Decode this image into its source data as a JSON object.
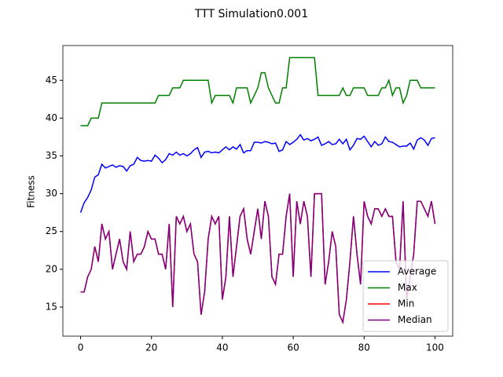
{
  "chart_data": {
    "type": "line",
    "title": "TTT Simulation0.001",
    "y_label": "Fitness",
    "x": [
      0,
      1,
      2,
      3,
      4,
      5,
      6,
      7,
      8,
      9,
      10,
      11,
      12,
      13,
      14,
      15,
      16,
      17,
      18,
      19,
      20,
      21,
      22,
      23,
      24,
      25,
      26,
      27,
      28,
      29,
      30,
      31,
      32,
      33,
      34,
      35,
      36,
      37,
      38,
      39,
      40,
      41,
      42,
      43,
      44,
      45,
      46,
      47,
      48,
      49,
      50,
      51,
      52,
      53,
      54,
      55,
      56,
      57,
      58,
      59,
      60,
      61,
      62,
      63,
      64,
      65,
      66,
      67,
      68,
      69,
      70,
      71,
      72,
      73,
      74,
      75,
      76,
      77,
      78,
      79,
      80,
      81,
      82,
      83,
      84,
      85,
      86,
      87,
      88,
      89,
      90,
      91,
      92,
      93,
      94,
      95,
      96,
      97,
      98,
      99,
      100
    ],
    "series": [
      {
        "name": "Average",
        "color": "#0000ff",
        "values": [
          27.5,
          28.8,
          29.5,
          30.5,
          32.2,
          32.5,
          33.9,
          33.4,
          33.6,
          33.8,
          33.5,
          33.7,
          33.6,
          33.0,
          33.7,
          33.9,
          34.8,
          34.4,
          34.3,
          34.4,
          34.3,
          35.1,
          34.7,
          34.1,
          34.5,
          35.3,
          35.1,
          35.5,
          35.1,
          35.3,
          35.0,
          35.3,
          35.8,
          36.1,
          34.8,
          35.5,
          35.6,
          35.4,
          35.5,
          35.4,
          35.8,
          36.2,
          35.8,
          36.2,
          35.9,
          36.5,
          35.4,
          35.7,
          35.7,
          36.8,
          36.8,
          36.7,
          36.9,
          36.8,
          36.6,
          36.7,
          35.6,
          35.8,
          36.9,
          36.5,
          36.8,
          37.2,
          37.8,
          37.1,
          37.3,
          37.0,
          37.2,
          37.5,
          36.4,
          36.6,
          36.9,
          36.5,
          36.6,
          37.2,
          36.6,
          37.2,
          35.8,
          36.4,
          37.3,
          37.2,
          37.6,
          36.9,
          36.2,
          36.9,
          36.4,
          36.6,
          37.5,
          36.9,
          36.8,
          36.5,
          36.2,
          36.3,
          36.3,
          36.7,
          35.9,
          37.1,
          37.4,
          37.1,
          36.4,
          37.3,
          37.4
        ]
      },
      {
        "name": "Max",
        "color": "#008000",
        "values": [
          39,
          39,
          39,
          40,
          40,
          40,
          42,
          42,
          42,
          42,
          42,
          42,
          42,
          42,
          42,
          42,
          42,
          42,
          42,
          42,
          42,
          42,
          43,
          43,
          43,
          43,
          44,
          44,
          44,
          45,
          45,
          45,
          45,
          45,
          45,
          45,
          45,
          42,
          43,
          43,
          43,
          43,
          43,
          42,
          44,
          44,
          44,
          44,
          42,
          43,
          44,
          46,
          46,
          44,
          43,
          42,
          42,
          44,
          44,
          48,
          48,
          48,
          48,
          48,
          48,
          48,
          48,
          43,
          43,
          43,
          43,
          43,
          43,
          43,
          44,
          43,
          43,
          44,
          44,
          44,
          44,
          43,
          43,
          43,
          43,
          44,
          44,
          45,
          43,
          44,
          44,
          42,
          43,
          45,
          45,
          45,
          44,
          44,
          44,
          44,
          44
        ]
      },
      {
        "name": "Min",
        "color": "#ff0000",
        "values": [
          17,
          17,
          19,
          20,
          23,
          21,
          26,
          24,
          25,
          20,
          22,
          24,
          21,
          20,
          25,
          21,
          22,
          22,
          23,
          25,
          24,
          24,
          22,
          22,
          20,
          26,
          15,
          27,
          26,
          27,
          25,
          26,
          22,
          21,
          14,
          17,
          24,
          27,
          26,
          27,
          16,
          19,
          27,
          19,
          23,
          27,
          28,
          24,
          22,
          25,
          28,
          24,
          29,
          27,
          19,
          18,
          22,
          22,
          27,
          30,
          19,
          29,
          26,
          29,
          27,
          19,
          30,
          30,
          30,
          18,
          21,
          25,
          23,
          14,
          13,
          16,
          21,
          27,
          22,
          18,
          29,
          27,
          26,
          28,
          28,
          27,
          28,
          27,
          27,
          21,
          20,
          29,
          16,
          19,
          22,
          29,
          29,
          28,
          27,
          29,
          26
        ]
      },
      {
        "name": "Median",
        "color": "#800080",
        "values": [
          17,
          17,
          19,
          20,
          23,
          21,
          26,
          24,
          25,
          20,
          22,
          24,
          21,
          20,
          25,
          21,
          22,
          22,
          23,
          25,
          24,
          24,
          22,
          22,
          20,
          26,
          15,
          27,
          26,
          27,
          25,
          26,
          22,
          21,
          14,
          17,
          24,
          27,
          26,
          27,
          16,
          19,
          27,
          19,
          23,
          27,
          28,
          24,
          22,
          25,
          28,
          24,
          29,
          27,
          19,
          18,
          22,
          22,
          27,
          30,
          19,
          29,
          26,
          29,
          27,
          19,
          30,
          30,
          30,
          18,
          21,
          25,
          23,
          14,
          13,
          16,
          21,
          27,
          22,
          18,
          29,
          27,
          26,
          28,
          28,
          27,
          28,
          27,
          27,
          21,
          20,
          29,
          16,
          19,
          22,
          29,
          29,
          28,
          27,
          29,
          26
        ]
      }
    ],
    "xlim": [
      -5,
      105
    ],
    "ylim": [
      11.15,
      49.6
    ],
    "xticks": [
      0,
      20,
      40,
      60,
      80,
      100
    ],
    "yticks": [
      15,
      20,
      25,
      30,
      35,
      40,
      45
    ],
    "legend": "lower right"
  }
}
